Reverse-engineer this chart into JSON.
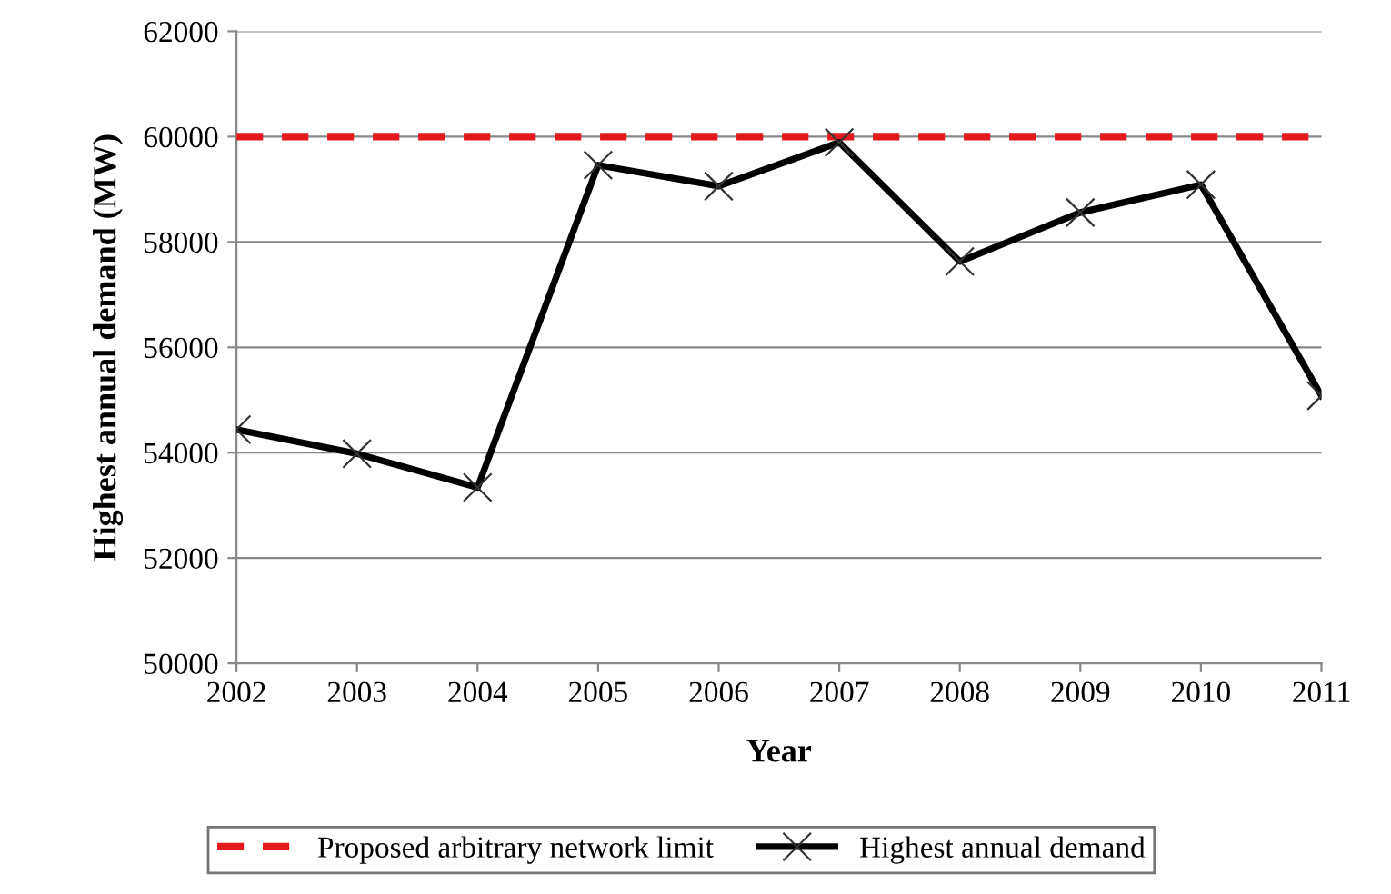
{
  "chart_data": {
    "type": "line",
    "xlabel": "Year",
    "ylabel": "Highest annual demand (MW)",
    "categories": [
      "2002",
      "2003",
      "2004",
      "2005",
      "2006",
      "2007",
      "2008",
      "2009",
      "2010",
      "2011"
    ],
    "series": [
      {
        "name": "Proposed arbitrary network limit",
        "color": "#e31a1c",
        "line_style": "dashed",
        "marker": "none",
        "values": [
          60000,
          60000,
          60000,
          60000,
          60000,
          60000,
          60000,
          60000,
          60000,
          60000
        ]
      },
      {
        "name": "Highest annual demand",
        "color": "#000000",
        "line_style": "solid",
        "marker": "cross",
        "values": [
          54440,
          53980,
          53340,
          59460,
          59060,
          59890,
          57630,
          58560,
          59090,
          55080
        ]
      }
    ],
    "ylim": [
      50000,
      62000
    ],
    "yticks": [
      50000,
      52000,
      54000,
      56000,
      58000,
      60000,
      62000
    ],
    "grid": "y",
    "legend": "bottom"
  }
}
